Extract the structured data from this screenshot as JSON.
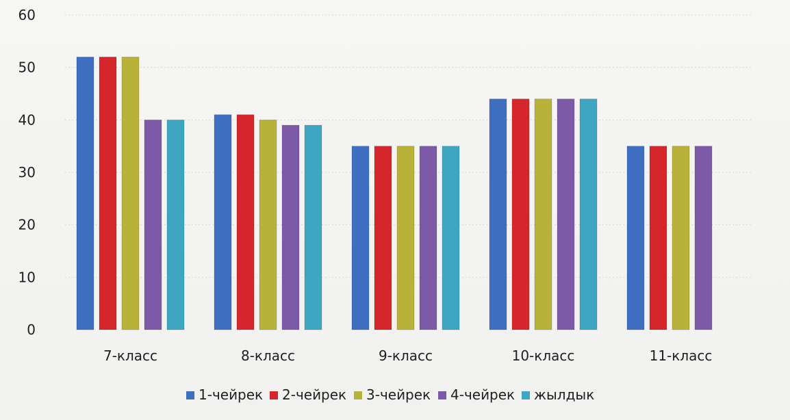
{
  "chart_data": {
    "type": "bar",
    "title": "",
    "xlabel": "",
    "ylabel": "",
    "ylim": [
      0,
      60
    ],
    "yticks": [
      0,
      10,
      20,
      30,
      40,
      50,
      60
    ],
    "grid": true,
    "legend_position": "bottom",
    "categories": [
      "7-класс",
      "8-класс",
      "9-класс",
      "10-класс",
      "11-класс"
    ],
    "series": [
      {
        "name": "1-чейрек",
        "color": "#3f6fc1",
        "values": [
          52,
          41,
          35,
          44,
          35
        ]
      },
      {
        "name": "2-чейрек",
        "color": "#d4262b",
        "values": [
          52,
          41,
          35,
          44,
          35
        ]
      },
      {
        "name": "3-чейрек",
        "color": "#b9b23a",
        "values": [
          52,
          40,
          35,
          44,
          35
        ]
      },
      {
        "name": "4-чейрек",
        "color": "#7d5aa8",
        "values": [
          40,
          39,
          35,
          44,
          35
        ]
      },
      {
        "name": "жылдык",
        "color": "#3fa6c2",
        "values": [
          40,
          39,
          35,
          44,
          null
        ]
      }
    ]
  }
}
